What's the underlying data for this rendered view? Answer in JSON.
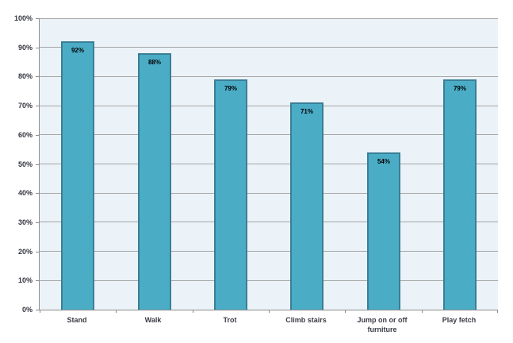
{
  "chart_data": {
    "type": "bar",
    "title": "",
    "xlabel": "",
    "ylabel": "",
    "categories": [
      "Stand",
      "Walk",
      "Trot",
      "Climb stairs",
      "Jump on or off furniture",
      "Play fetch"
    ],
    "values": [
      92,
      88,
      79,
      71,
      54,
      79
    ],
    "data_labels": [
      "92%",
      "88%",
      "79%",
      "71%",
      "54%",
      "79%"
    ],
    "ylim": [
      0,
      100
    ],
    "ytick_step": 10,
    "ytick_labels": [
      "0%",
      "10%",
      "20%",
      "30%",
      "40%",
      "50%",
      "60%",
      "70%",
      "80%",
      "90%",
      "100%"
    ],
    "grid": true,
    "legend": "none",
    "colors": {
      "bar_fill": "#4BACC6",
      "bar_border": "#3A7F96",
      "plot_background": "#ECF3F8",
      "gridline": "#A6A6A6",
      "axis_line": "#8C8C8C",
      "value_label_text": "#000000",
      "tick_label_text": "#33353f"
    }
  }
}
